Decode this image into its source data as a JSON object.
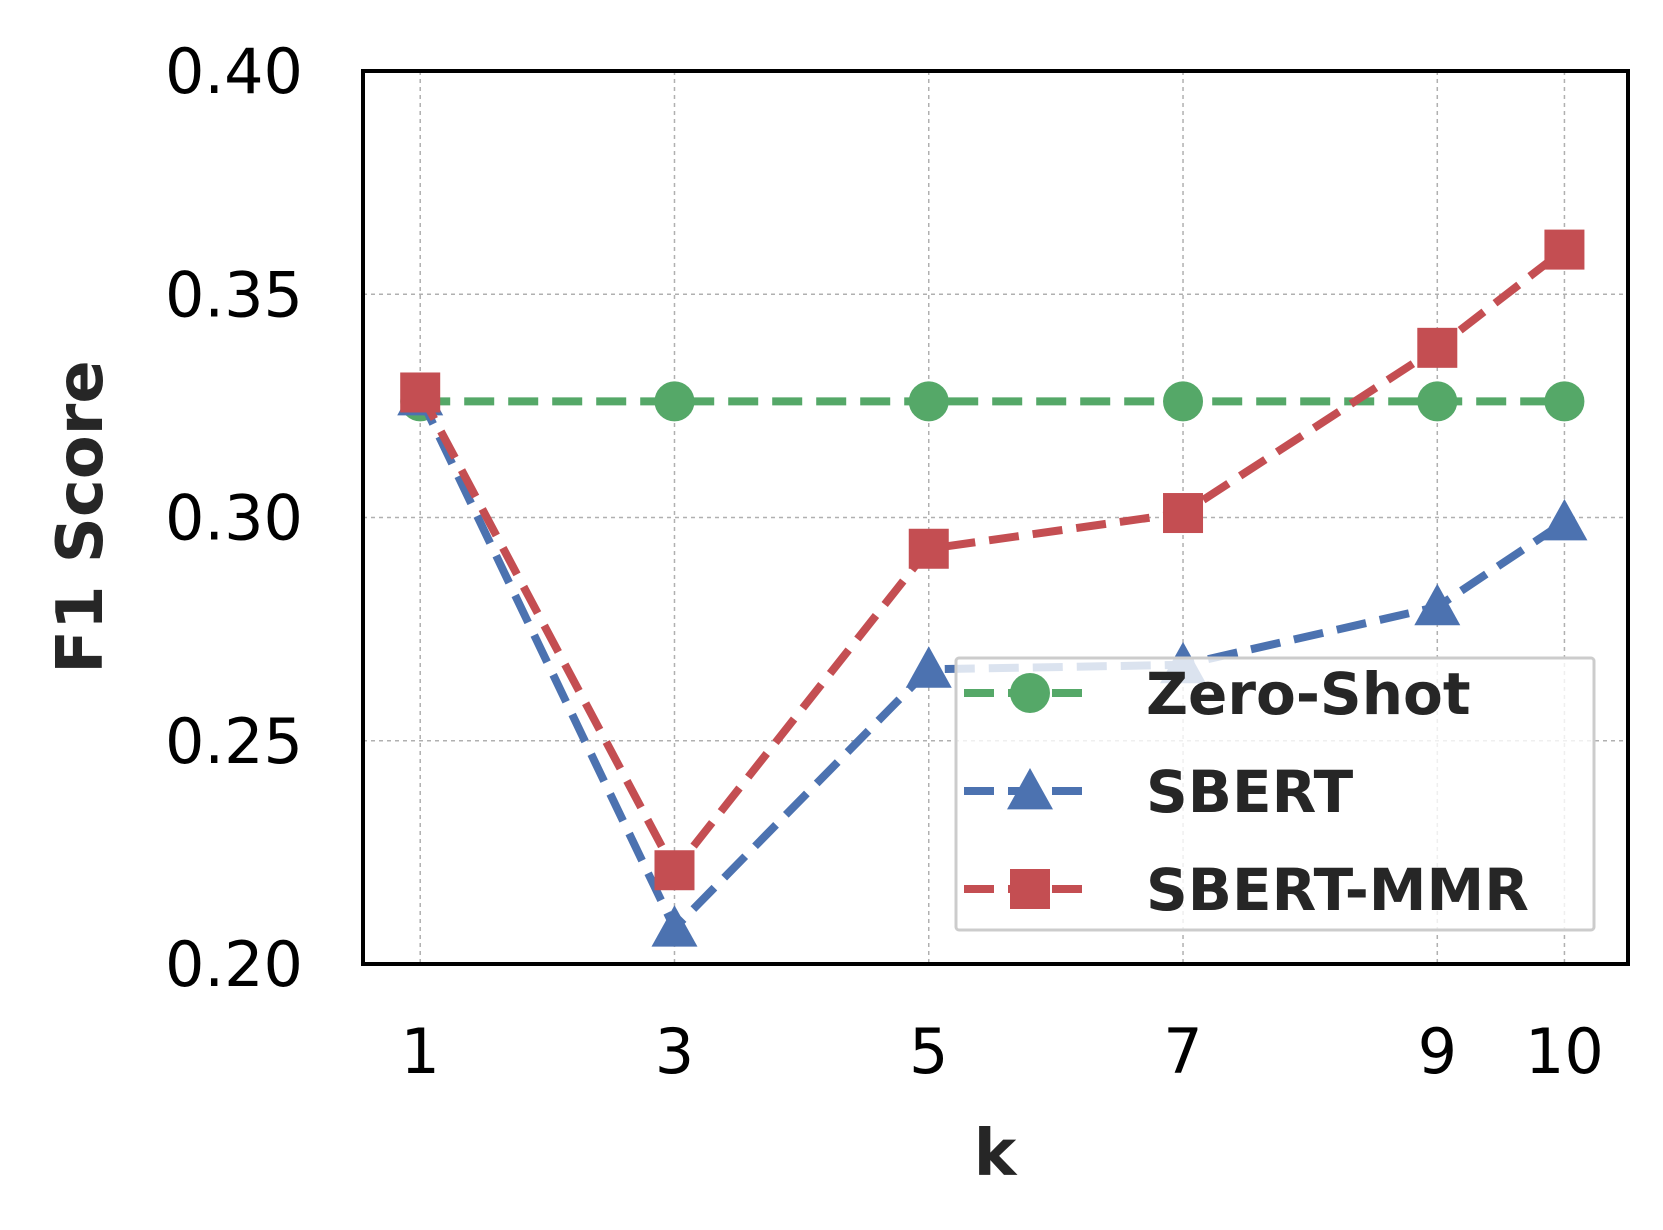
{
  "chart_data": {
    "type": "line",
    "title": "",
    "xlabel": "k",
    "ylabel": "F1 Score",
    "x": [
      1,
      3,
      5,
      7,
      9,
      10
    ],
    "x_tick_labels": [
      "1",
      "3",
      "5",
      "7",
      "9",
      "10"
    ],
    "ylim": [
      0.2,
      0.4
    ],
    "y_ticks": [
      0.2,
      0.25,
      0.3,
      0.35,
      0.4
    ],
    "y_tick_labels": [
      "0.20",
      "0.25",
      "0.30",
      "0.35",
      "0.40"
    ],
    "grid": true,
    "legend_position": "lower-right",
    "series": [
      {
        "name": "Zero-Shot",
        "values": [
          0.326,
          0.326,
          0.326,
          0.326,
          0.326,
          0.326
        ],
        "color": "#55a868",
        "marker": "circle"
      },
      {
        "name": "SBERT",
        "values": [
          0.327,
          0.208,
          0.266,
          0.267,
          0.28,
          0.299
        ],
        "color": "#4c72b0",
        "marker": "triangle"
      },
      {
        "name": "SBERT-MMR",
        "values": [
          0.328,
          0.221,
          0.293,
          0.301,
          0.338,
          0.36
        ],
        "color": "#c44e52",
        "marker": "square"
      }
    ]
  }
}
